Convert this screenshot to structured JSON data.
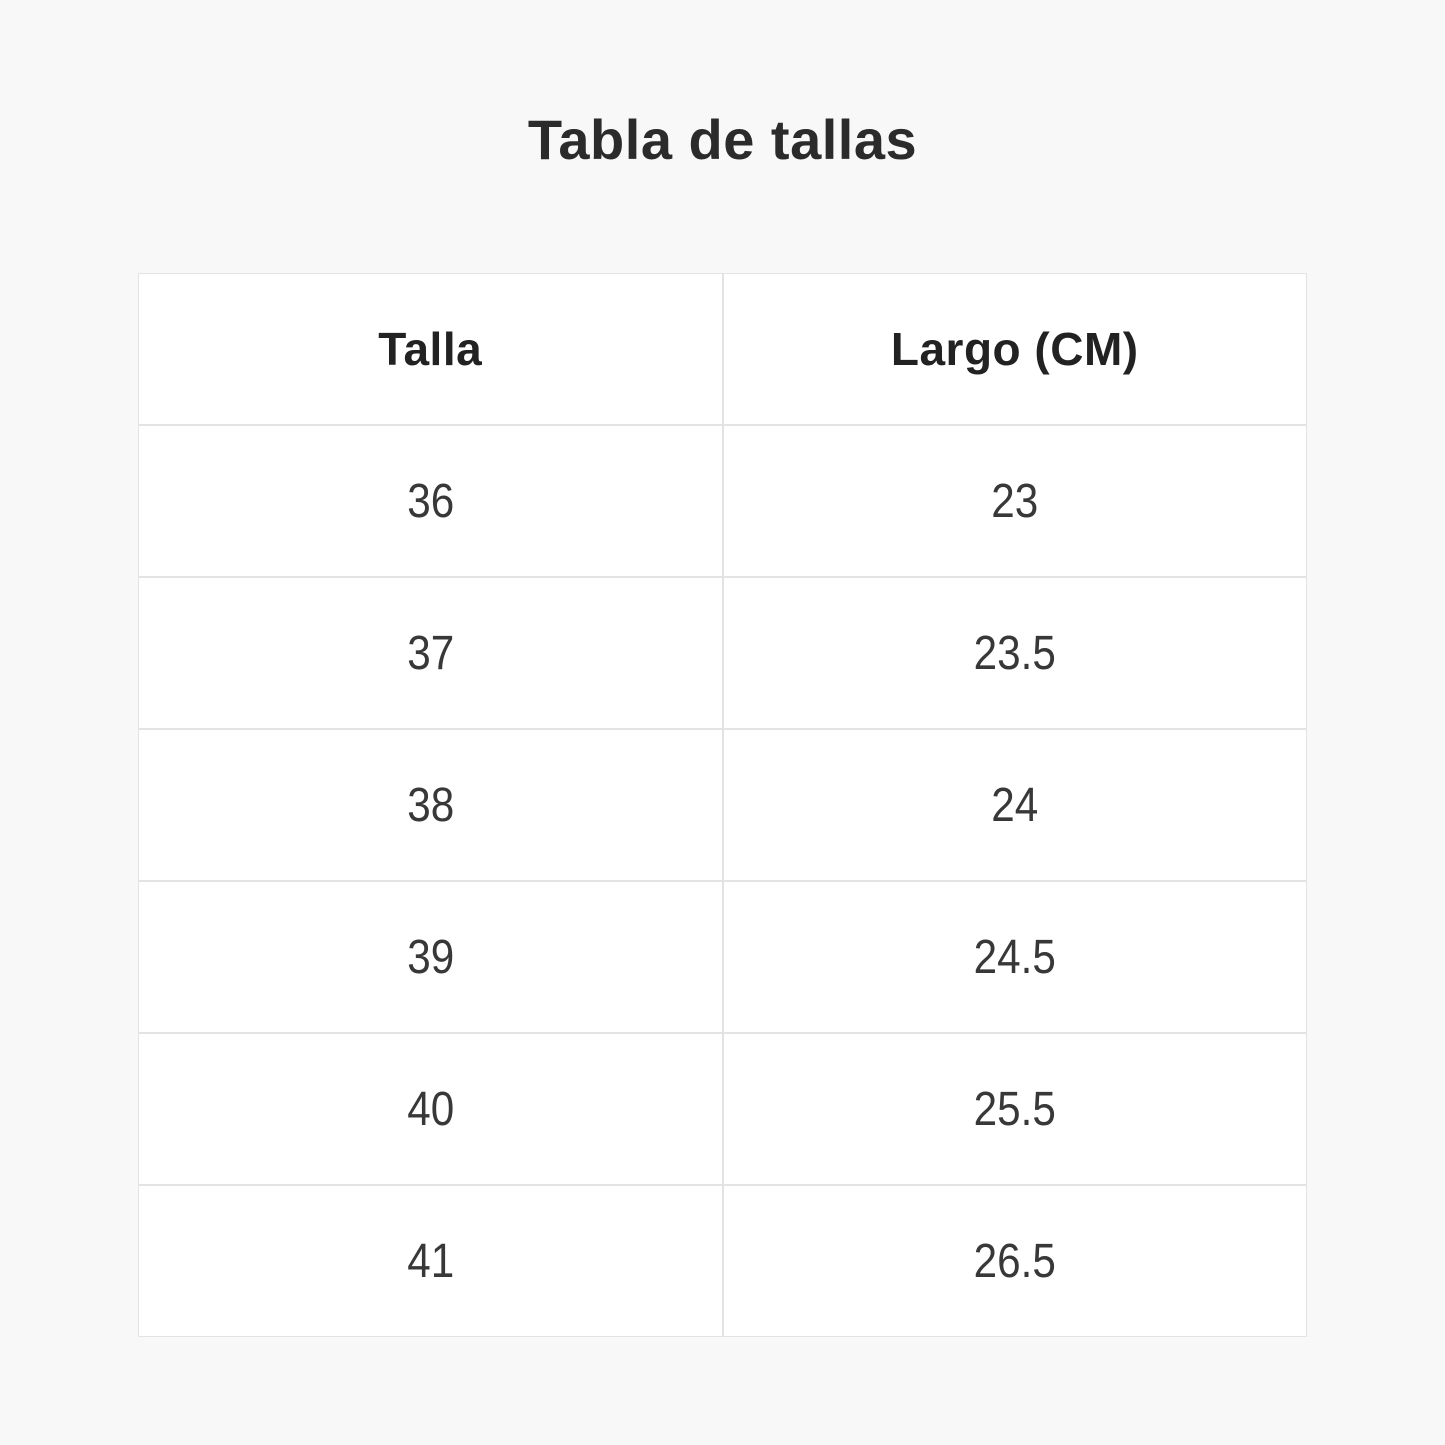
{
  "title": "Tabla de tallas",
  "colors": {
    "page_background": "#f8f8f8",
    "cell_background": "#ffffff",
    "border": "#e3e3e3",
    "title_text": "#2b2b2b",
    "cell_text": "#383838"
  },
  "chart_data": {
    "type": "table",
    "title": "Tabla de tallas",
    "columns": [
      "Talla",
      "Largo (CM)"
    ],
    "rows": [
      [
        "36",
        "23"
      ],
      [
        "37",
        "23.5"
      ],
      [
        "38",
        "24"
      ],
      [
        "39",
        "24.5"
      ],
      [
        "40",
        "25.5"
      ],
      [
        "41",
        "26.5"
      ]
    ]
  }
}
